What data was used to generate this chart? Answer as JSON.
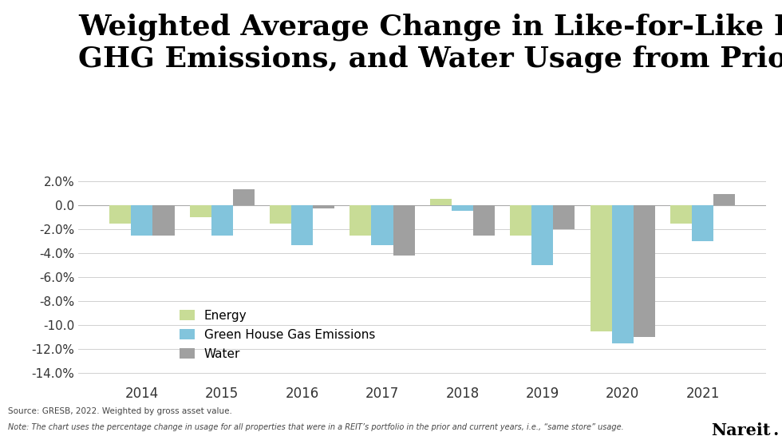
{
  "title": "Weighted Average Change in Like-for-Like Energy,\nGHG Emissions, and Water Usage from Prior Year",
  "years": [
    2014,
    2015,
    2016,
    2017,
    2018,
    2019,
    2020,
    2021
  ],
  "energy": [
    -0.015,
    -0.01,
    -0.015,
    -0.025,
    0.005,
    -0.025,
    -0.105,
    -0.015
  ],
  "ghg": [
    -0.025,
    -0.025,
    -0.033,
    -0.033,
    -0.005,
    -0.05,
    -0.115,
    -0.03
  ],
  "water": [
    -0.025,
    0.013,
    -0.003,
    -0.042,
    -0.025,
    -0.02,
    -0.11,
    0.009
  ],
  "energy_color": "#c8dc96",
  "ghg_color": "#82c4dc",
  "water_color": "#a0a0a0",
  "ylim": [
    -0.148,
    0.028
  ],
  "yticks": [
    0.02,
    0.0,
    -0.02,
    -0.04,
    -0.06,
    -0.08,
    -0.1,
    -0.12,
    -0.14
  ],
  "ytick_labels": [
    "2.0%",
    "0.0",
    "-2.0%",
    "-4.0%",
    "-6.0%",
    "-8.0%",
    "-10.0",
    "-12.0%",
    "-14.0%"
  ],
  "legend_labels": [
    "Energy",
    "Green House Gas Emissions",
    "Water"
  ],
  "source_text": "Source: GRESB, 2022. Weighted by gross asset value.",
  "note_text": "Note: The chart uses the percentage change in usage for all properties that were in a REIT’s portfolio in the prior and current years, i.e., “same store” usage.",
  "nareit_text": "Nareit",
  "bar_width": 0.27,
  "background_color": "#ffffff",
  "title_fontsize": 26,
  "axis_fontsize": 11
}
